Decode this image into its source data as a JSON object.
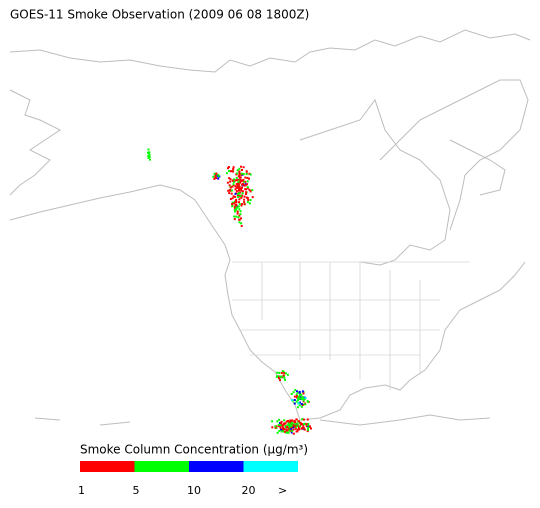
{
  "header": {
    "title": "GOES-11 Smoke Observation (2009 06 08  1800Z)"
  },
  "legend": {
    "title": "Smoke Column Concentration (μg/m³)",
    "ticks": [
      1,
      5,
      10,
      20
    ],
    "overflow_label": ">",
    "colors": [
      "#ff0000",
      "#00ff00",
      "#0000ff",
      "#00ffff"
    ]
  }
}
